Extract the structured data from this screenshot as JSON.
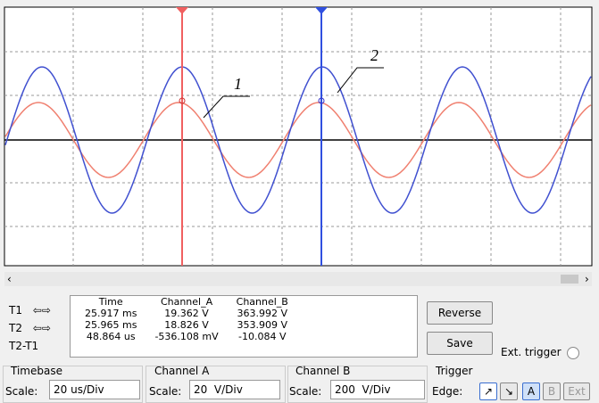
{
  "screen": {
    "labels": [
      "1",
      "2"
    ]
  },
  "cursors": {
    "rows": [
      "T1",
      "T2",
      "T2-T1"
    ],
    "headers": [
      "Time",
      "Channel_A",
      "Channel_B"
    ],
    "table": [
      [
        "25.917 ms",
        "19.362 V",
        "363.992 V"
      ],
      [
        "25.965 ms",
        "18.826 V",
        "353.909 V"
      ],
      [
        "48.864 us",
        "-536.108 mV",
        "-10.084 V"
      ]
    ]
  },
  "buttons": {
    "reverse": "Reverse",
    "save": "Save",
    "ext_trigger": "Ext. trigger"
  },
  "timebase": {
    "title": "Timebase",
    "scale_label": "Scale:",
    "scale": "20 us/Div"
  },
  "channel_a": {
    "title": "Channel A",
    "scale_label": "Scale:",
    "scale": "20  V/Div"
  },
  "channel_b": {
    "title": "Channel B",
    "scale_label": "Scale:",
    "scale": "200  V/Div"
  },
  "trigger": {
    "title": "Trigger",
    "edge_label": "Edge:",
    "sources": [
      "A",
      "B",
      "Ext"
    ]
  }
}
